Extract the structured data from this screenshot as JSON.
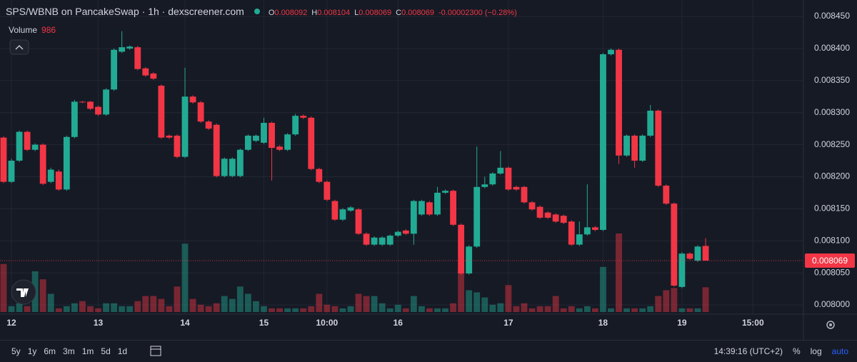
{
  "chart_data": {
    "type": "candlestick",
    "title": "SPS/WBNB on PancakeSwap · 1h · dexscreener.com",
    "ohlc_labels": [
      "O",
      "H",
      "L",
      "C"
    ],
    "change": "-0.00002300 (−0.28%)",
    "volume_label": "Volume",
    "up_color": "#22ab94",
    "down_color": "#f23645",
    "grid": true,
    "log_scale": false,
    "open": [
      0.008261,
      0.008192,
      0.008225,
      0.00827,
      0.008242,
      0.00825,
      0.008192,
      0.008208,
      0.00818,
      0.008262,
      0.008317,
      0.008317,
      0.008309,
      0.008297,
      0.008336,
      0.008395,
      0.0084,
      0.008402,
      0.008369,
      0.008361,
      0.008342,
      0.008264,
      0.008264,
      0.008231,
      0.008325,
      0.008316,
      0.008286,
      0.008281,
      0.008201,
      0.008201,
      0.008201,
      0.008242,
      0.008256,
      0.008253,
      0.008284,
      0.008247,
      0.008242,
      0.008266,
      0.008295,
      0.008292,
      0.008212,
      0.008192,
      0.008162,
      0.008133,
      0.008147,
      0.008149,
      0.008111,
      0.008094,
      0.008094,
      0.008094,
      0.008108,
      0.008116,
      0.008111,
      0.008141,
      0.00816,
      0.008141,
      0.008175,
      0.008178,
      0.008125,
      0.008049,
      0.008091,
      0.008184,
      0.008188,
      0.008205,
      0.008214,
      0.008184,
      0.008184,
      0.00816,
      0.008153,
      0.008144,
      0.008141,
      0.008139,
      0.00813,
      0.008094,
      0.00811,
      0.008121,
      0.008117,
      0.008391,
      0.008398,
      0.008233,
      0.008264,
      0.008225,
      0.008264,
      0.008303,
      0.008186,
      0.008158,
      0.008028,
      0.00808,
      0.008069,
      0.008092
    ],
    "high": [
      0.008263,
      0.008228,
      0.008272,
      0.008272,
      0.008252,
      0.008252,
      0.008214,
      0.008211,
      0.008264,
      0.00832,
      0.008318,
      0.008318,
      0.008311,
      0.008338,
      0.0084,
      0.008427,
      0.008405,
      0.008404,
      0.008371,
      0.008363,
      0.008344,
      0.008266,
      0.008266,
      0.00837,
      0.008327,
      0.008318,
      0.008288,
      0.008283,
      0.00823,
      0.00823,
      0.008244,
      0.008266,
      0.008266,
      0.008292,
      0.008286,
      0.008249,
      0.008268,
      0.008298,
      0.008297,
      0.008294,
      0.008214,
      0.008194,
      0.008164,
      0.008151,
      0.008154,
      0.008151,
      0.008113,
      0.008107,
      0.008107,
      0.00811,
      0.008116,
      0.008118,
      0.008164,
      0.008164,
      0.008162,
      0.008184,
      0.00818,
      0.00818,
      0.008127,
      0.008093,
      0.008247,
      0.0082,
      0.008207,
      0.00824,
      0.008216,
      0.008186,
      0.008186,
      0.008162,
      0.008155,
      0.008146,
      0.008143,
      0.008141,
      0.008132,
      0.00813,
      0.008188,
      0.008123,
      0.008393,
      0.0084,
      0.0084,
      0.008266,
      0.008266,
      0.008266,
      0.008312,
      0.008305,
      0.008188,
      0.00816,
      0.008082,
      0.008082,
      0.008093,
      0.008104
    ],
    "low": [
      0.00819,
      0.00819,
      0.008223,
      0.00824,
      0.00824,
      0.008187,
      0.00819,
      0.008178,
      0.008178,
      0.00826,
      0.008315,
      0.008304,
      0.008295,
      0.008295,
      0.008334,
      0.008393,
      0.008398,
      0.008366,
      0.008356,
      0.008351,
      0.008259,
      0.008259,
      0.008229,
      0.008229,
      0.008314,
      0.008284,
      0.008273,
      0.008199,
      0.008199,
      0.008199,
      0.008199,
      0.00824,
      0.008254,
      0.008251,
      0.008194,
      0.00824,
      0.00824,
      0.008264,
      0.00829,
      0.00821,
      0.00819,
      0.008162,
      0.008131,
      0.008131,
      0.008145,
      0.008109,
      0.008092,
      0.008092,
      0.008092,
      0.008092,
      0.008106,
      0.008109,
      0.008094,
      0.008139,
      0.008139,
      0.008139,
      0.008173,
      0.008123,
      0.008047,
      0.008047,
      0.008089,
      0.008182,
      0.008186,
      0.008203,
      0.008178,
      0.008178,
      0.008158,
      0.008147,
      0.008134,
      0.008134,
      0.008128,
      0.008126,
      0.008092,
      0.008092,
      0.008108,
      0.008115,
      0.008115,
      0.008389,
      0.00822,
      0.008231,
      0.008214,
      0.008223,
      0.008262,
      0.008184,
      0.008156,
      0.008028,
      0.008026,
      0.00807,
      0.008067,
      0.008069
    ],
    "close": [
      0.008192,
      0.008225,
      0.00827,
      0.008242,
      0.00825,
      0.008189,
      0.008211,
      0.00818,
      0.008262,
      0.008317,
      0.008316,
      0.008306,
      0.008297,
      0.008336,
      0.008398,
      0.008402,
      0.008403,
      0.008368,
      0.008358,
      0.008353,
      0.008261,
      0.008261,
      0.008231,
      0.008325,
      0.008316,
      0.008286,
      0.008275,
      0.008201,
      0.008228,
      0.008228,
      0.008242,
      0.008264,
      0.008264,
      0.008284,
      0.008245,
      0.008242,
      0.008266,
      0.008295,
      0.008292,
      0.008212,
      0.008192,
      0.008164,
      0.008133,
      0.008149,
      0.008152,
      0.008111,
      0.008094,
      0.008105,
      0.008105,
      0.008108,
      0.008114,
      0.008111,
      0.008162,
      0.008162,
      0.008141,
      0.008175,
      0.008178,
      0.008125,
      0.008049,
      0.008091,
      0.008184,
      0.008188,
      0.008205,
      0.008214,
      0.00818,
      0.00818,
      0.00816,
      0.008149,
      0.008136,
      0.008136,
      0.00813,
      0.008128,
      0.008094,
      0.00811,
      0.008121,
      0.008117,
      0.008391,
      0.008398,
      0.008233,
      0.008264,
      0.008225,
      0.008264,
      0.008303,
      0.008186,
      0.008158,
      0.00803,
      0.00808,
      0.008072,
      0.008091,
      0.008069
    ],
    "volume": [
      1914,
      232,
      348,
      232,
      1624,
      1305,
      725,
      145,
      232,
      348,
      435,
      232,
      145,
      348,
      348,
      232,
      232,
      435,
      638,
      638,
      522,
      232,
      1015,
      2726,
      522,
      290,
      232,
      348,
      638,
      522,
      1015,
      725,
      435,
      232,
      145,
      145,
      145,
      145,
      145,
      232,
      725,
      290,
      232,
      145,
      232,
      725,
      638,
      638,
      348,
      145,
      290,
      145,
      638,
      232,
      145,
      145,
      145,
      348,
      1740,
      870,
      783,
      580,
      290,
      348,
      1073,
      232,
      348,
      145,
      232,
      232,
      638,
      145,
      232,
      145,
      232,
      145,
      1798,
      145,
      3132,
      145,
      145,
      145,
      232,
      638,
      870,
      957,
      145,
      145,
      145,
      986
    ],
    "ylim": [
      0.0079855,
      0.0084757
    ],
    "yticks": [
      {
        "value": 0.008,
        "label": "0.008000"
      },
      {
        "value": 0.00805,
        "label": "0.008050"
      },
      {
        "value": 0.0081,
        "label": "0.008100"
      },
      {
        "value": 0.00815,
        "label": "0.008150"
      },
      {
        "value": 0.0082,
        "label": "0.008200"
      },
      {
        "value": 0.00825,
        "label": "0.008250"
      },
      {
        "value": 0.0083,
        "label": "0.008300"
      },
      {
        "value": 0.00835,
        "label": "0.008350"
      },
      {
        "value": 0.0084,
        "label": "0.008400"
      },
      {
        "value": 0.00845,
        "label": "0.008450"
      }
    ],
    "xlim": [
      -0.45,
      101.4
    ],
    "xticks": [
      {
        "value": 1,
        "label": "12"
      },
      {
        "value": 12,
        "label": "13"
      },
      {
        "value": 23,
        "label": "14"
      },
      {
        "value": 33,
        "label": "15"
      },
      {
        "value": 41,
        "label": "10:00"
      },
      {
        "value": 50,
        "label": "16"
      },
      {
        "value": 64,
        "label": "17"
      },
      {
        "value": 76,
        "label": "18"
      },
      {
        "value": 86,
        "label": "19"
      },
      {
        "value": 95,
        "label": "15:00"
      }
    ]
  },
  "ui": {
    "periods": [
      "5y",
      "1y",
      "6m",
      "3m",
      "1m",
      "5d",
      "1d"
    ],
    "time": "14:39:16 (UTC+2)",
    "toggles": [
      "%",
      "log",
      "auto"
    ]
  }
}
